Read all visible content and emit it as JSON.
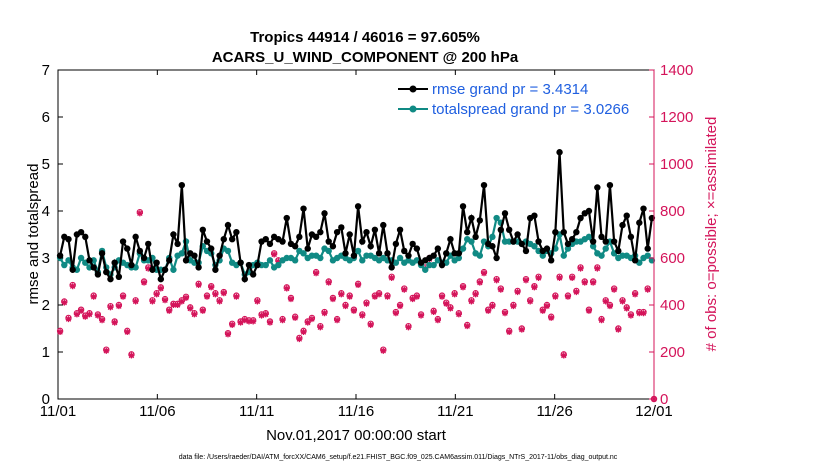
{
  "chart_data": {
    "type": "line",
    "title_line1": "Tropics 44914 / 46016 = 97.605%",
    "title_line2": "ACARS_U_WIND_COMPONENT @ 200 hPa",
    "xlabel": "Nov.01,2017 00:00:00 start",
    "ylabel": "rmse and totalspread",
    "y2label": "# of obs: o=possible; ×=assimilated",
    "xlim": [
      0,
      30
    ],
    "ylim": [
      0,
      7
    ],
    "y2lim": [
      0,
      1400
    ],
    "xticks": [
      {
        "value": 0,
        "label": "11/01"
      },
      {
        "value": 5,
        "label": "11/06"
      },
      {
        "value": 10,
        "label": "11/11"
      },
      {
        "value": 15,
        "label": "11/16"
      },
      {
        "value": 20,
        "label": "11/21"
      },
      {
        "value": 25,
        "label": "11/26"
      },
      {
        "value": 30,
        "label": "12/01"
      }
    ],
    "yticks": [
      "0",
      "1",
      "2",
      "3",
      "4",
      "5",
      "6",
      "7"
    ],
    "y2ticks": [
      "0",
      "200",
      "400",
      "600",
      "800",
      "1000",
      "1200",
      "1400"
    ],
    "series": [
      {
        "name": "rmse grand pr = 3.4314",
        "color": "#000000",
        "values": [
          3.05,
          3.45,
          3.4,
          2.75,
          3.5,
          3.55,
          3.45,
          2.95,
          2.8,
          2.65,
          3.1,
          2.7,
          2.55,
          2.9,
          2.6,
          3.35,
          3.2,
          2.85,
          3.45,
          3.15,
          3.0,
          3.3,
          2.75,
          2.9,
          2.55,
          2.75,
          2.95,
          3.5,
          3.3,
          4.55,
          2.95,
          3.1,
          3.05,
          2.8,
          3.6,
          3.35,
          3.2,
          2.75,
          3.05,
          3.4,
          3.7,
          3.4,
          3.55,
          2.9,
          2.55,
          2.85,
          2.65,
          2.85,
          3.35,
          3.4,
          3.3,
          3.45,
          3.4,
          3.35,
          3.85,
          3.3,
          3.25,
          3.45,
          4.05,
          3.2,
          3.5,
          3.45,
          3.55,
          3.95,
          3.35,
          3.25,
          3.55,
          3.65,
          3.1,
          3.5,
          3.05,
          4.1,
          3.35,
          3.55,
          3.25,
          3.6,
          3.1,
          3.7,
          3.1,
          2.8,
          3.3,
          3.6,
          3.15,
          3.05,
          3.3,
          3.2,
          2.9,
          2.95,
          3.0,
          3.05,
          3.2,
          2.85,
          3.1,
          3.4,
          3.1,
          3.1,
          4.1,
          3.55,
          3.85,
          3.45,
          3.8,
          4.55,
          3.3,
          3.25,
          3.0,
          3.6,
          3.95,
          3.6,
          3.35,
          3.5,
          3.3,
          3.15,
          3.85,
          3.9,
          3.35,
          3.15,
          3.2,
          2.95,
          3.55,
          5.25,
          3.55,
          3.3,
          3.4,
          3.55,
          3.85,
          3.95,
          4.0,
          3.35,
          4.5,
          3.45,
          3.35,
          4.55,
          3.35,
          3.15,
          3.7,
          3.9,
          3.45,
          2.95,
          3.75,
          4.05,
          3.2,
          3.85
        ]
      },
      {
        "name": "totalspread grand pr = 3.0266",
        "color": "#108a84",
        "values": [
          3.0,
          2.85,
          2.95,
          2.8,
          2.75,
          3.0,
          2.9,
          2.8,
          2.95,
          2.7,
          3.15,
          2.8,
          2.65,
          2.8,
          2.95,
          2.9,
          2.85,
          2.8,
          2.8,
          3.1,
          2.95,
          2.95,
          3.0,
          2.75,
          2.75,
          2.75,
          3.0,
          2.75,
          3.05,
          3.1,
          3.35,
          2.95,
          2.9,
          2.9,
          3.25,
          3.15,
          3.1,
          2.85,
          2.95,
          3.2,
          3.15,
          2.9,
          2.85,
          2.9,
          2.65,
          2.7,
          2.85,
          2.9,
          2.85,
          2.85,
          2.95,
          2.8,
          2.85,
          2.95,
          3.0,
          3.0,
          2.95,
          3.15,
          3.1,
          3.0,
          3.05,
          3.05,
          3.0,
          3.2,
          3.15,
          2.95,
          3.0,
          3.05,
          3.0,
          2.95,
          3.0,
          3.15,
          2.95,
          3.05,
          3.05,
          3.0,
          2.95,
          3.0,
          2.95,
          2.95,
          2.9,
          3.0,
          2.9,
          2.95,
          2.9,
          2.95,
          2.85,
          2.75,
          2.85,
          2.85,
          2.95,
          2.9,
          2.9,
          3.05,
          2.95,
          3.0,
          3.2,
          3.4,
          3.35,
          3.1,
          3.05,
          3.35,
          3.25,
          3.45,
          3.85,
          3.75,
          3.35,
          3.35,
          3.35,
          3.35,
          3.3,
          3.35,
          3.3,
          3.25,
          3.15,
          3.05,
          3.15,
          3.1,
          3.2,
          3.5,
          3.05,
          3.2,
          3.3,
          3.35,
          3.35,
          3.4,
          3.45,
          3.25,
          3.1,
          3.05,
          3.2,
          3.35,
          3.1,
          3.0,
          3.05,
          3.05,
          3.0,
          3.05,
          2.9,
          3.0,
          3.05,
          2.95
        ]
      },
      {
        "name": "possible",
        "color": "#d4145a",
        "marker": "circle",
        "values": [
          290,
          415,
          345,
          485,
          365,
          380,
          355,
          365,
          440,
          360,
          340,
          210,
          395,
          330,
          400,
          440,
          290,
          190,
          420,
          795,
          500,
          560,
          420,
          450,
          475,
          425,
          380,
          405,
          405,
          420,
          435,
          390,
          365,
          490,
          380,
          440,
          480,
          450,
          420,
          455,
          280,
          320,
          440,
          330,
          340,
          335,
          335,
          420,
          360,
          365,
          330,
          620,
          590,
          340,
          475,
          430,
          350,
          260,
          290,
          330,
          345,
          540,
          310,
          370,
          500,
          430,
          340,
          450,
          400,
          440,
          380,
          490,
          360,
          410,
          320,
          440,
          450,
          210,
          440,
          520,
          370,
          400,
          470,
          310,
          430,
          440,
          360,
          560,
          600,
          375,
          340,
          440,
          410,
          390,
          450,
          365,
          480,
          315,
          420,
          450,
          500,
          540,
          380,
          400,
          510,
          470,
          370,
          290,
          400,
          460,
          300,
          510,
          420,
          480,
          520,
          380,
          400,
          350,
          440,
          520,
          190,
          440,
          520,
          460,
          560,
          500,
          380,
          500,
          560,
          340,
          420,
          400,
          470,
          300,
          420,
          390,
          360,
          450,
          370,
          370,
          470,
          0
        ]
      },
      {
        "name": "assimilated",
        "color": "#d4145a",
        "marker": "star",
        "values": [
          285,
          410,
          340,
          480,
          360,
          375,
          350,
          360,
          435,
          355,
          335,
          205,
          390,
          325,
          395,
          435,
          285,
          185,
          415,
          790,
          495,
          555,
          415,
          445,
          470,
          420,
          375,
          400,
          400,
          415,
          430,
          385,
          360,
          485,
          375,
          435,
          475,
          445,
          415,
          450,
          275,
          315,
          435,
          325,
          335,
          330,
          330,
          415,
          355,
          360,
          325,
          615,
          585,
          335,
          470,
          425,
          345,
          255,
          285,
          325,
          340,
          535,
          305,
          365,
          495,
          425,
          335,
          445,
          395,
          435,
          375,
          485,
          355,
          405,
          315,
          435,
          445,
          205,
          435,
          515,
          365,
          395,
          465,
          305,
          425,
          435,
          355,
          555,
          595,
          370,
          335,
          435,
          405,
          385,
          445,
          360,
          475,
          310,
          415,
          445,
          495,
          535,
          375,
          395,
          505,
          465,
          365,
          285,
          395,
          455,
          295,
          505,
          415,
          475,
          515,
          375,
          395,
          345,
          435,
          515,
          185,
          435,
          515,
          455,
          555,
          495,
          375,
          495,
          555,
          335,
          415,
          395,
          465,
          295,
          415,
          385,
          355,
          445,
          365,
          365,
          465,
          0
        ]
      }
    ],
    "legend": [
      {
        "label": "rmse grand pr = 3.4314",
        "color": "#000000"
      },
      {
        "label": "totalspread grand pr = 3.0266",
        "color": "#108a84"
      }
    ],
    "legend_location": "top-right",
    "footnote": "data file: /Users/raeder/DAI/ATM_forcXX/CAM6_setup/f.e21.FHIST_BGC.f09_025.CAM6assim.011/Diags_NTrS_2017-11/obs_diag_output.nc"
  }
}
